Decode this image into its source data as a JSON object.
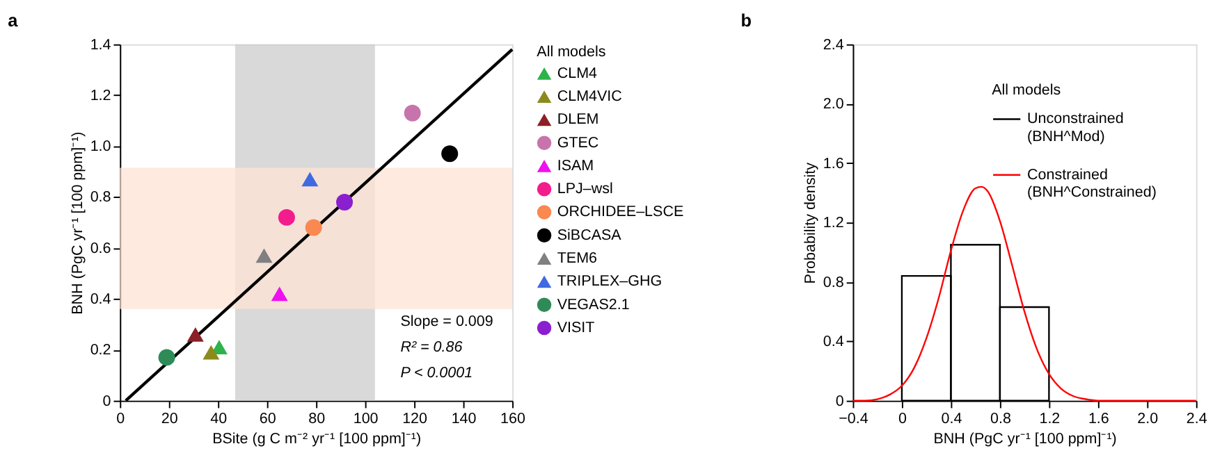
{
  "chart_data": [
    {
      "type": "scatter",
      "title": "a",
      "xlabel": "BSite (g C m⁻² yr⁻¹ [100 ppm]⁻¹)",
      "ylabel": "BNH (PgC yr⁻¹ [100 ppm]⁻¹)",
      "legend_title": "All models",
      "legend": "right",
      "grid": false,
      "xlim": [
        0,
        160
      ],
      "xticks": [
        0,
        20,
        40,
        60,
        80,
        100,
        120,
        140,
        160
      ],
      "ylim": [
        0,
        1.4
      ],
      "yticks": [
        0,
        0.2,
        0.4,
        0.6,
        0.8,
        {
          "value": 1.0,
          "label": "1.0"
        },
        1.2,
        1.4
      ],
      "bands": [
        {
          "axis": "x",
          "from": 47,
          "to": 104,
          "color": "#cccccc"
        },
        {
          "axis": "y",
          "from": 0.36,
          "to": 0.915,
          "color": "#fde3d4"
        }
      ],
      "series": [
        {
          "name": "CLM4",
          "color": "#2db34a",
          "marker": "triangle",
          "x": [
            40.5
          ],
          "values": [
            0.21
          ]
        },
        {
          "name": "CLM4VIC",
          "color": "#8c8a1c",
          "marker": "triangle",
          "x": [
            37.2
          ],
          "values": [
            0.19
          ]
        },
        {
          "name": "DLEM",
          "color": "#8b2027",
          "marker": "triangle",
          "x": [
            30.8
          ],
          "values": [
            0.26
          ]
        },
        {
          "name": "GTEC",
          "color": "#c774ad",
          "marker": "circle",
          "x": [
            119.3
          ],
          "values": [
            1.13
          ]
        },
        {
          "name": "ISAM",
          "color": "#ee10ee",
          "marker": "triangle",
          "x": [
            65.1
          ],
          "values": [
            0.42
          ]
        },
        {
          "name": "LPJ–wsl",
          "color": "#f21c8c",
          "marker": "circle",
          "x": [
            68.0
          ],
          "values": [
            0.72
          ]
        },
        {
          "name": "ORCHIDEE–LSCE",
          "color": "#f98851",
          "marker": "circle",
          "x": [
            79.0
          ],
          "values": [
            0.68
          ]
        },
        {
          "name": "SiBCASA",
          "color": "#000000",
          "marker": "circle",
          "x": [
            134.5
          ],
          "values": [
            0.97
          ]
        },
        {
          "name": "TEM6",
          "color": "#808080",
          "marker": "triangle",
          "x": [
            58.8
          ],
          "values": [
            0.57
          ]
        },
        {
          "name": "TRIPLEX–GHG",
          "color": "#4169e1",
          "marker": "triangle",
          "x": [
            77.5
          ],
          "values": [
            0.87
          ]
        },
        {
          "name": "VEGAS2.1",
          "color": "#2e8b57",
          "marker": "circle",
          "x": [
            19.1
          ],
          "values": [
            0.17
          ]
        },
        {
          "name": "VISIT",
          "color": "#8a1fcf",
          "marker": "circle",
          "x": [
            91.6
          ],
          "values": [
            0.78
          ]
        },
        {
          "type": "line",
          "color": "#000000",
          "x": [
            2.4,
            160
          ],
          "values": [
            0,
            1.38
          ]
        }
      ],
      "annotations": [
        "Slope = 0.009",
        "R² = 0.86",
        "P < 0.0001"
      ]
    },
    {
      "type": "histogram",
      "title": "b",
      "xlabel": "BNH (PgC yr⁻¹ [100 ppm]⁻¹)",
      "ylabel": "Probability density",
      "legend_title": "All models",
      "legend": "top right",
      "grid": false,
      "xlim": [
        -0.4,
        2.4
      ],
      "xticks": [
        {
          "value": -0.4,
          "label": "−0.4"
        },
        0,
        0.4,
        0.8,
        1.2,
        1.6,
        {
          "value": 2.0,
          "label": "2.0"
        },
        2.4
      ],
      "ylim": [
        0,
        2.4
      ],
      "yticks": [
        0,
        0.4,
        0.8,
        1.2,
        1.6,
        {
          "value": 2.0,
          "label": "2.0"
        },
        2.4
      ],
      "series": [
        {
          "name": "Unconstrained (BNH^Mod)",
          "type": "histogram",
          "color": "#000000",
          "bins": [
            0,
            0.4,
            0.8,
            1.2
          ],
          "values": [
            0.84,
            1.05,
            0.63
          ]
        },
        {
          "name": "Constrained (BNH^Constrained)",
          "type": "line",
          "color": "#ff0000",
          "x": [
            -0.4,
            -0.3,
            -0.2,
            -0.1,
            0,
            0.1,
            0.2,
            0.3,
            0.4,
            0.5,
            0.6,
            0.65,
            0.7,
            0.8,
            0.9,
            1.0,
            1.1,
            1.2,
            1.3,
            1.4,
            1.5,
            1.6,
            1.8,
            2.0,
            2.2,
            2.4
          ],
          "values": [
            0,
            0,
            0.01,
            0.04,
            0.1,
            0.22,
            0.42,
            0.69,
            1.01,
            1.28,
            1.43,
            1.44,
            1.41,
            1.21,
            0.91,
            0.6,
            0.35,
            0.18,
            0.08,
            0.03,
            0.01,
            0,
            0,
            0,
            0,
            0
          ]
        }
      ]
    }
  ]
}
